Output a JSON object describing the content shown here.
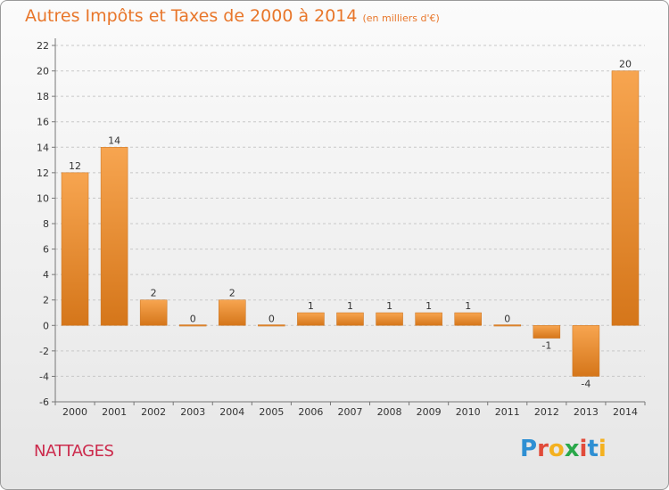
{
  "title": "Autres Impôts et Taxes de 2000 à 2014",
  "subtitle": "(en milliers d'€)",
  "commune": "NATTAGES",
  "logo": "Proxiti",
  "colors": {
    "bar_light": "#f6a14d",
    "bar_dark": "#d57619",
    "title": "#e8762a",
    "commune": "#cc2a4c"
  },
  "chart_data": {
    "type": "bar",
    "categories": [
      "2000",
      "2001",
      "2002",
      "2003",
      "2004",
      "2005",
      "2006",
      "2007",
      "2008",
      "2009",
      "2010",
      "2011",
      "2012",
      "2013",
      "2014"
    ],
    "values": [
      12,
      14,
      2,
      0,
      2,
      0,
      1,
      1,
      1,
      1,
      1,
      0,
      -1,
      -4,
      20
    ],
    "ylim": [
      -6,
      22
    ],
    "yticks": [
      -6,
      -4,
      -2,
      0,
      2,
      4,
      6,
      8,
      10,
      12,
      14,
      16,
      18,
      20,
      22
    ],
    "grid": "dashed-horizontal",
    "xlabel": "",
    "ylabel": ""
  }
}
